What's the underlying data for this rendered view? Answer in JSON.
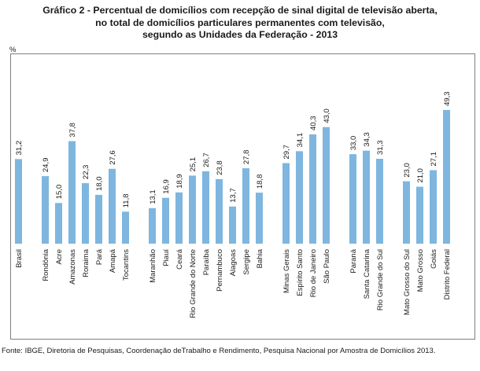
{
  "chart_data": {
    "type": "bar",
    "title_lines": [
      "Gráfico 2 - Percentual de domicílios com recepção de sinal digital de televisão aberta,",
      "no total de domicílios particulares permanentes com televisão,",
      "segundo as Unidades da Federação - 2013"
    ],
    "unit": "%",
    "ylim": [
      0,
      55
    ],
    "groups": [
      {
        "categories": [
          "Brasil"
        ],
        "values": [
          31.2
        ]
      },
      {
        "categories": [
          "Rondônia",
          "Acre",
          "Amazonas",
          "Roraima",
          "Pará",
          "Amapá",
          "Tocantins"
        ],
        "values": [
          24.9,
          15.0,
          37.8,
          22.3,
          18.0,
          27.6,
          11.8
        ]
      },
      {
        "categories": [
          "Maranhão",
          "Piauí",
          "Ceará",
          "Rio Grande do Norte",
          "Paraíba",
          "Pernambuco",
          "Alagoas",
          "Sergipe",
          "Bahia"
        ],
        "values": [
          13.1,
          16.9,
          18.9,
          25.1,
          26.7,
          23.8,
          13.7,
          27.8,
          18.8
        ]
      },
      {
        "categories": [
          "Minas Gerais",
          "Espírito Santo",
          "Rio de Janeiro",
          "São Paulo"
        ],
        "values": [
          29.7,
          34.1,
          40.3,
          43.0
        ]
      },
      {
        "categories": [
          "Paraná",
          "Santa Catarina",
          "Rio Grande do Sul"
        ],
        "values": [
          33.0,
          34.3,
          31.3
        ]
      },
      {
        "categories": [
          "Mato Grosso do Sul",
          "Mato Grosso",
          "Goiás",
          "Distrito Federal"
        ],
        "values": [
          23.0,
          21.0,
          27.1,
          49.3
        ]
      }
    ]
  },
  "source_text": "Fonte: IBGE, Diretoria de Pesquisas, Coordenação deTrabalho e Rendimento, Pesquisa Nacional por Amostra de Domicílios 2013.",
  "colors": {
    "bar": "#7eb6df",
    "frame": "#7f7f7f"
  }
}
